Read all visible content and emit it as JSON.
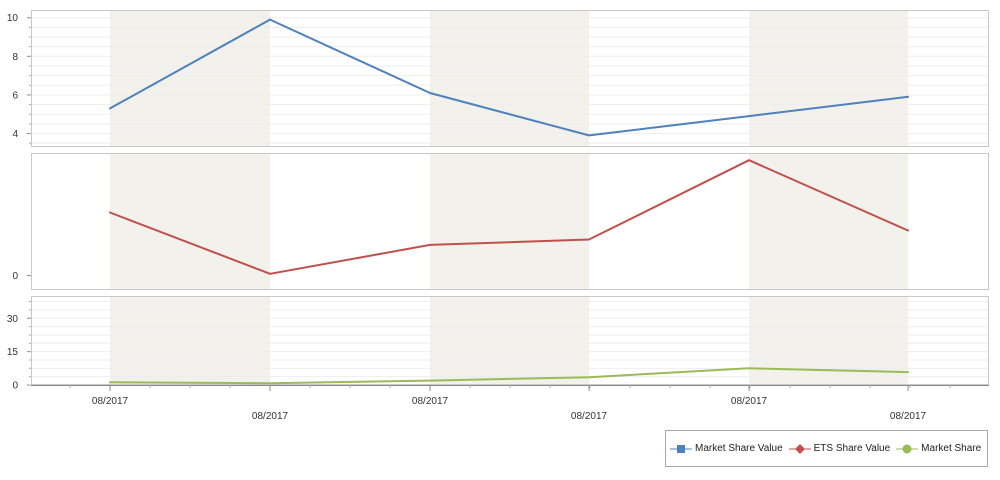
{
  "chart_data": {
    "type": "line",
    "categories": [
      "08/2017",
      "08/2017",
      "08/2017",
      "08/2017",
      "08/2017",
      "08/2017"
    ],
    "panes": [
      {
        "series": "Market Share Value",
        "ylim": [
          3.3,
          10.4
        ],
        "yticks": [
          4,
          6,
          8,
          10
        ]
      },
      {
        "series": "ETS Share Value",
        "ylim": [
          -0.4,
          3.4
        ],
        "yticks": [
          0
        ]
      },
      {
        "series": "Market Share",
        "ylim": [
          0,
          40
        ],
        "yticks": [
          0,
          15,
          30
        ]
      }
    ],
    "series": [
      {
        "name": "Market Share Value",
        "color": "#4f81bd",
        "marker": "square",
        "values": [
          5.3,
          9.9,
          6.1,
          3.9,
          4.9,
          5.9
        ]
      },
      {
        "name": "ETS Share Value",
        "color": "#c0504d",
        "marker": "diamond",
        "values": [
          1.75,
          0.05,
          0.85,
          1.0,
          3.2,
          1.25
        ]
      },
      {
        "name": "Market Share",
        "color": "#9bbb59",
        "marker": "circle",
        "values": [
          1.2,
          0.8,
          2.0,
          3.5,
          7.5,
          5.8
        ]
      }
    ],
    "grid": true,
    "legend_position": "bottom-right",
    "band_color": "#f2f1ec"
  }
}
